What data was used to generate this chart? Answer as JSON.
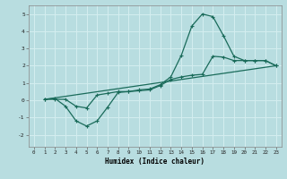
{
  "xlabel": "Humidex (Indice chaleur)",
  "bg_color": "#b8dde0",
  "line_color": "#1a6b5a",
  "grid_color": "#d4eef0",
  "xlim": [
    -0.5,
    23.5
  ],
  "ylim": [
    -2.7,
    5.5
  ],
  "yticks": [
    -2,
    -1,
    0,
    1,
    2,
    3,
    4,
    5
  ],
  "line1_x": [
    1,
    2,
    3,
    4,
    5,
    6,
    7,
    8,
    9,
    10,
    11,
    12,
    13,
    14,
    15,
    16,
    17,
    18,
    19,
    20,
    21,
    22,
    23
  ],
  "line1_y": [
    0.05,
    0.1,
    -0.35,
    -1.2,
    -1.5,
    -1.2,
    -0.4,
    0.45,
    0.5,
    0.6,
    0.65,
    0.9,
    1.35,
    2.6,
    4.3,
    5.0,
    4.85,
    3.75,
    2.55,
    2.3,
    2.3,
    2.3,
    2.0
  ],
  "line2_x": [
    1,
    2,
    3,
    4,
    5,
    6,
    7,
    8,
    9,
    10,
    11,
    12,
    13,
    14,
    15,
    16,
    17,
    18,
    19,
    20,
    21,
    22,
    23
  ],
  "line2_y": [
    0.05,
    0.05,
    0.05,
    -0.35,
    -0.45,
    0.3,
    0.4,
    0.5,
    0.5,
    0.55,
    0.6,
    0.85,
    1.2,
    1.35,
    1.45,
    1.5,
    2.55,
    2.5,
    2.3,
    2.3,
    2.3,
    2.3,
    2.0
  ],
  "line3_x": [
    1,
    23
  ],
  "line3_y": [
    0.05,
    2.0
  ]
}
